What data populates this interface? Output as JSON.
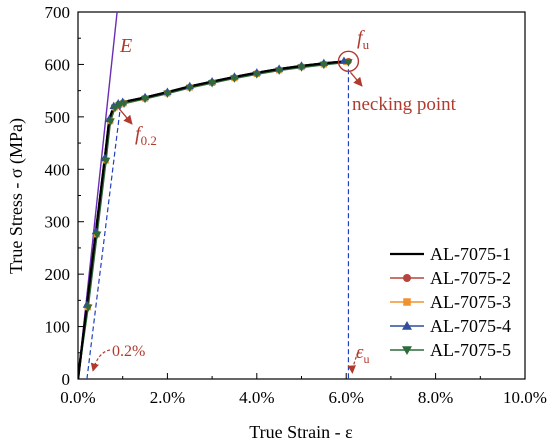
{
  "chart_data": {
    "type": "line",
    "title": "",
    "xlabel": "True Strain - ε",
    "ylabel": "True Stress - σ (MPa)",
    "xlim": [
      0,
      10
    ],
    "ylim": [
      0,
      700
    ],
    "x_unit": "%",
    "x_ticks": [
      "0.0%",
      "2.0%",
      "4.0%",
      "6.0%",
      "8.0%",
      "10.0%"
    ],
    "y_ticks": [
      "0",
      "100",
      "200",
      "300",
      "400",
      "500",
      "600",
      "700"
    ],
    "grid": false,
    "legend_position": "bottom-right",
    "series": [
      {
        "name": "AL-7075-1",
        "color": "#000000",
        "marker": "none",
        "x": [
          0,
          0.2,
          0.4,
          0.6,
          0.7,
          0.8,
          0.9,
          1.0,
          1.5,
          2.0,
          2.5,
          3.0,
          3.5,
          4.0,
          4.5,
          5.0,
          5.5,
          6.0,
          6.1
        ],
        "y": [
          0,
          140,
          280,
          420,
          495,
          520,
          525,
          528,
          537,
          547,
          558,
          567,
          576,
          584,
          591,
          597,
          602,
          606,
          607
        ]
      },
      {
        "name": "AL-7075-2",
        "color": "#b5453c",
        "marker": "circle",
        "x": [
          0,
          0.21,
          0.41,
          0.61,
          0.71,
          0.81,
          0.91,
          1.01,
          1.5,
          2.0,
          2.5,
          3.0,
          3.5,
          4.0,
          4.5,
          5.0,
          5.5,
          6.05
        ],
        "y": [
          0,
          138,
          278,
          418,
          493,
          519,
          524,
          527,
          536,
          546,
          557,
          566,
          575,
          583,
          590,
          596,
          601,
          606
        ]
      },
      {
        "name": "AL-7075-3",
        "color": "#f0922e",
        "marker": "square",
        "x": [
          0,
          0.22,
          0.42,
          0.62,
          0.72,
          0.82,
          0.92,
          1.02,
          1.5,
          2.0,
          2.5,
          3.0,
          3.5,
          4.0,
          4.5,
          5.0,
          5.5,
          6.0
        ],
        "y": [
          0,
          137,
          276,
          417,
          492,
          518,
          523,
          526,
          535,
          545,
          556,
          565,
          574,
          582,
          589,
          595,
          600,
          605
        ]
      },
      {
        "name": "AL-7075-4",
        "color": "#2f4e9c",
        "marker": "triangle-up",
        "x": [
          0,
          0.2,
          0.4,
          0.6,
          0.7,
          0.8,
          0.9,
          1.0,
          1.5,
          2.0,
          2.5,
          3.0,
          3.5,
          4.0,
          4.5,
          5.0,
          5.5,
          5.95
        ],
        "y": [
          0,
          142,
          282,
          422,
          496,
          521,
          526,
          529,
          538,
          548,
          559,
          568,
          577,
          585,
          592,
          598,
          603,
          607
        ]
      },
      {
        "name": "AL-7075-5",
        "color": "#2e6b3a",
        "marker": "triangle-down",
        "x": [
          0,
          0.23,
          0.43,
          0.63,
          0.73,
          0.83,
          0.93,
          1.03,
          1.5,
          2.0,
          2.5,
          3.0,
          3.5,
          4.0,
          4.5,
          5.0,
          5.5,
          6.05
        ],
        "y": [
          0,
          136,
          275,
          416,
          491,
          517,
          522,
          525,
          534,
          544,
          555,
          564,
          573,
          581,
          588,
          594,
          599,
          604
        ]
      }
    ],
    "annotations": {
      "E_label": "E",
      "f02_label": "f",
      "f02_sub": "0.2",
      "fu_label": "f",
      "fu_sub": "u",
      "necking_label": "necking point",
      "offset_label": "0.2%",
      "eu_label": "ε",
      "eu_sub": "u",
      "accent_color": "#b03a2e",
      "elastic_line_color": "#6a2db5",
      "guide_color": "#1f3fbf",
      "necking_point": [
        6.05,
        606
      ],
      "f02_point": [
        0.85,
        522
      ],
      "offset_strain": 0.2,
      "eu_strain": 6.05
    }
  }
}
